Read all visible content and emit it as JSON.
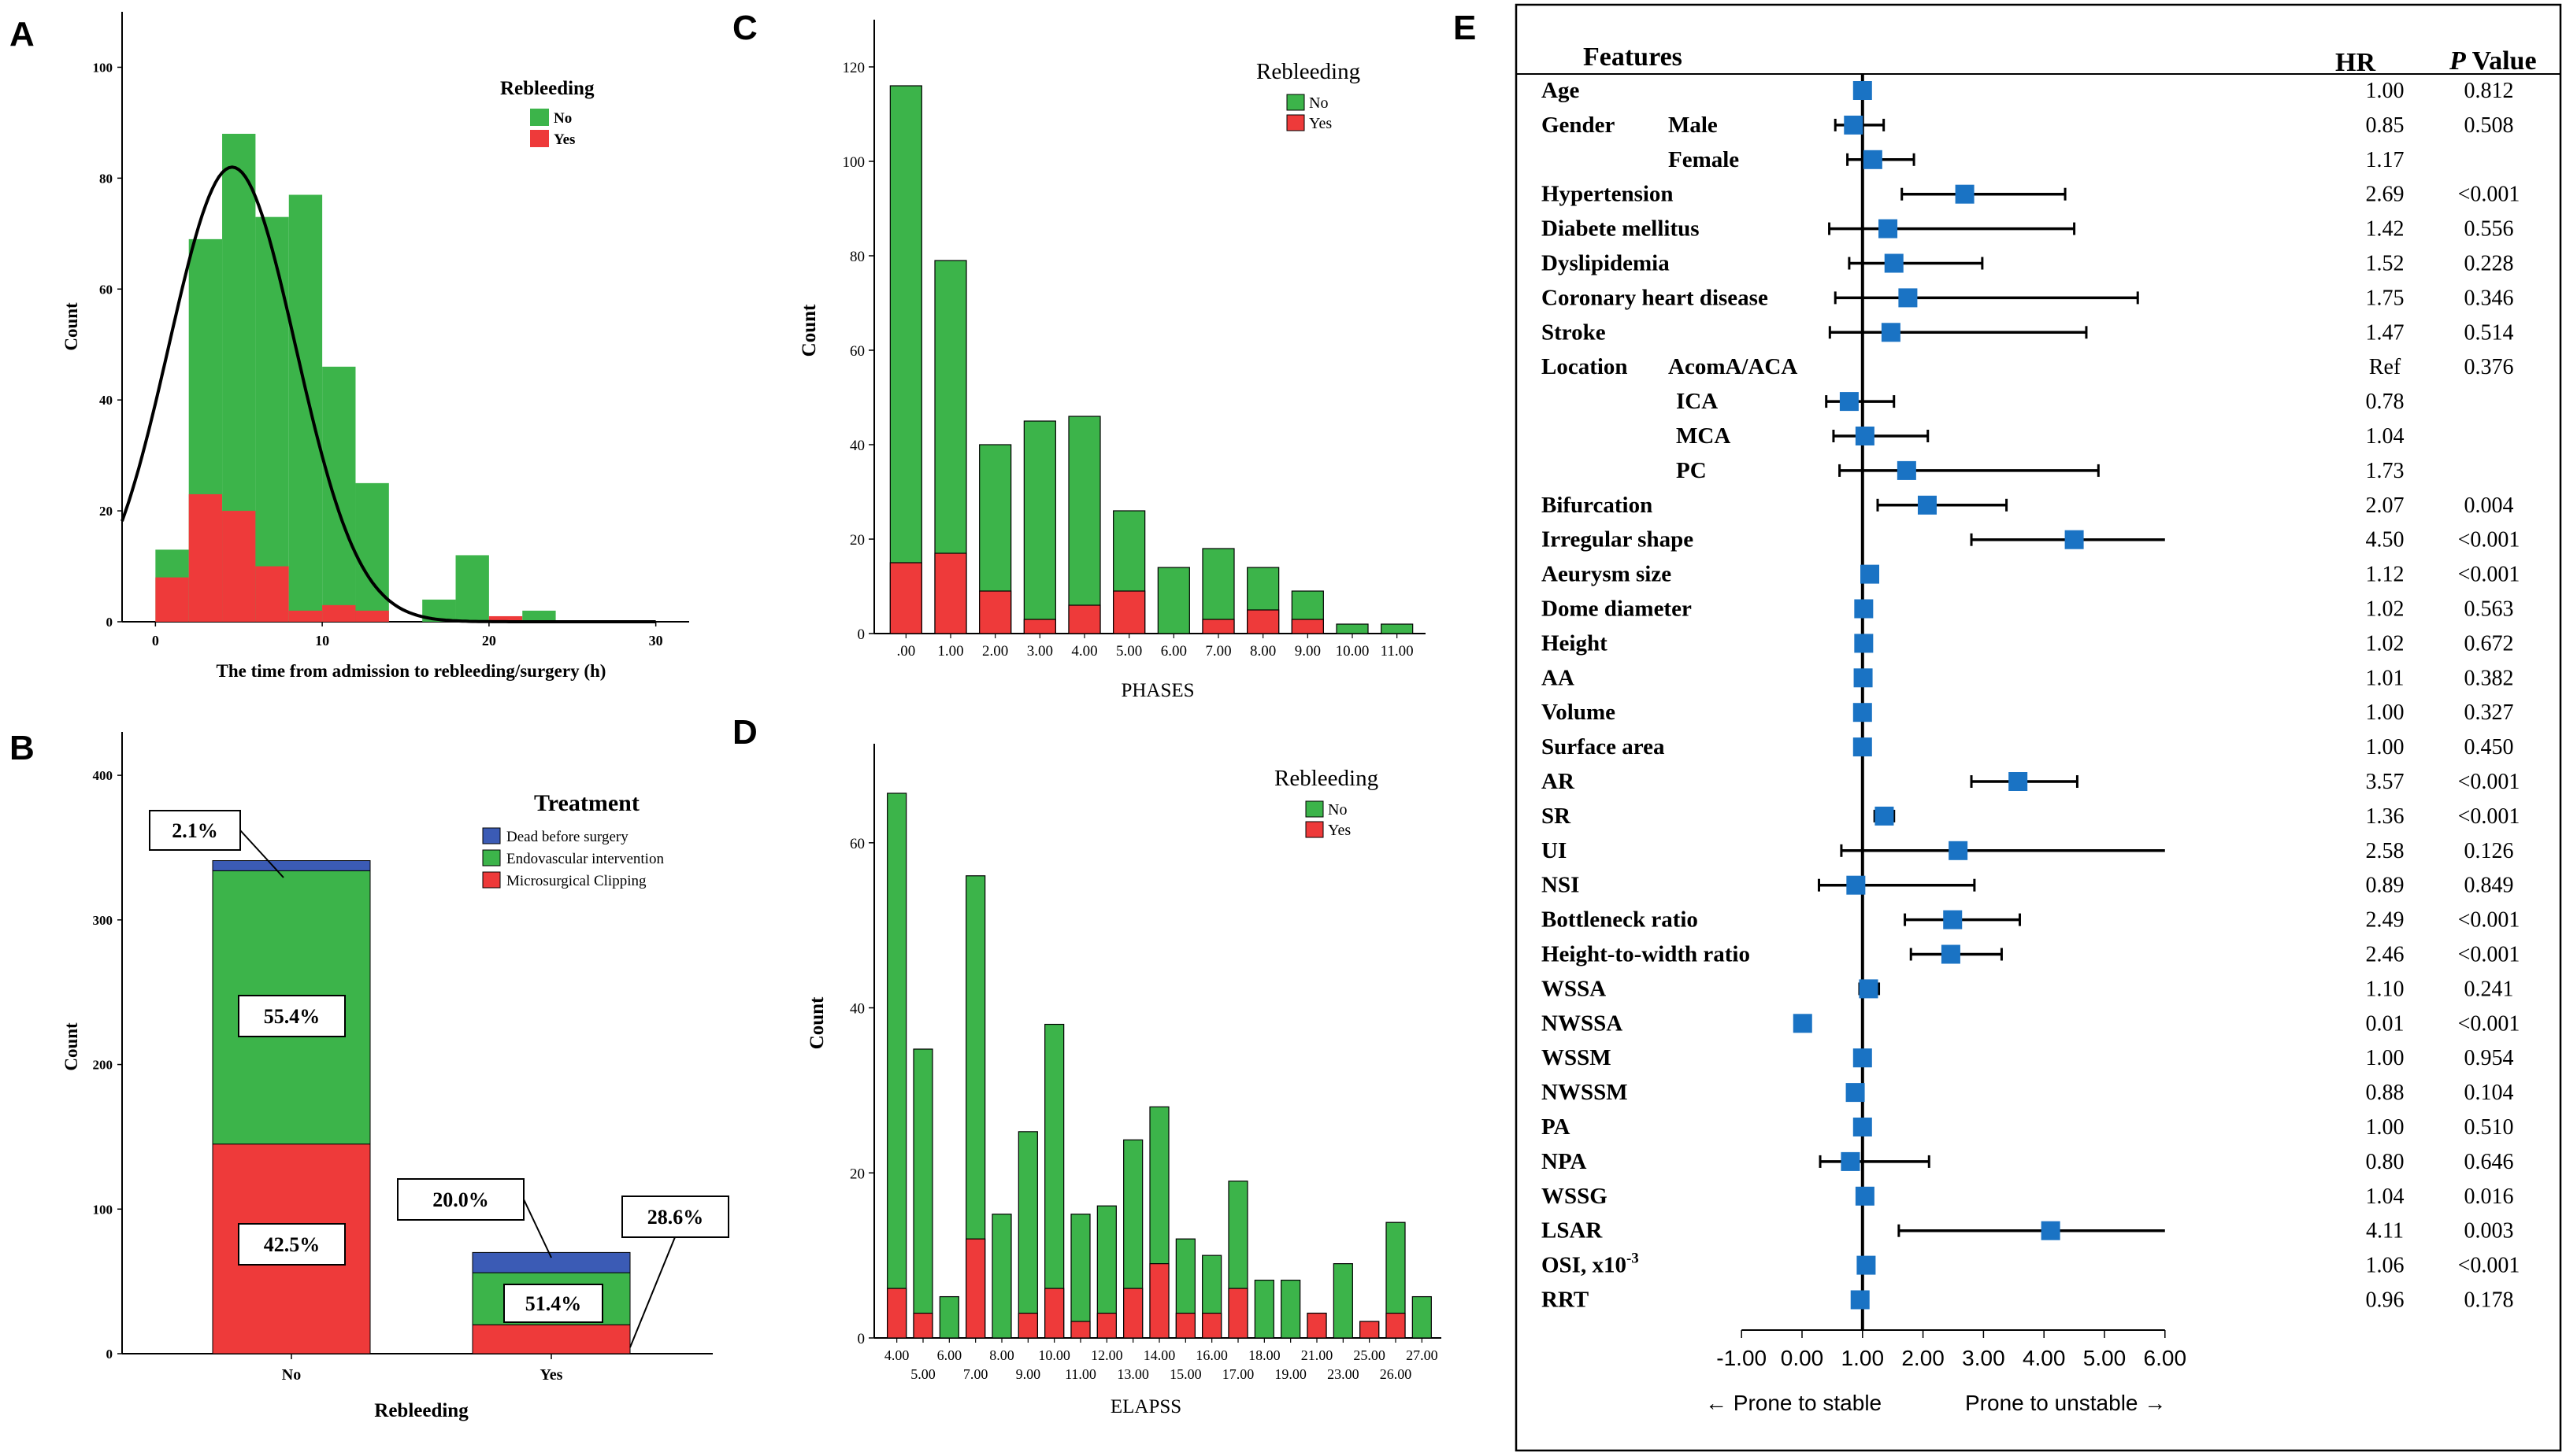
{
  "colors": {
    "green": "#3cb44a",
    "red": "#ee3a3a",
    "blue": "#3b5bb5",
    "marker": "#1a73c4",
    "axis": "#000000"
  },
  "chart_data": [
    {
      "panel_label": "A",
      "type": "bar",
      "title": "",
      "xlabel": "The time from admission to rebleeding/surgery (h)",
      "ylabel": "Count",
      "xlim": [
        -2,
        32
      ],
      "ylim": [
        0,
        110
      ],
      "x_ticks": [
        "0",
        "10",
        "20",
        "30"
      ],
      "y_ticks": [
        "0",
        "20",
        "40",
        "60",
        "80",
        "100"
      ],
      "legend": {
        "title": "Rebleeding",
        "entries": [
          "No",
          "Yes"
        ],
        "position": "top-right"
      },
      "bin_starts": [
        0,
        2,
        4,
        6,
        8,
        10,
        12,
        14,
        16,
        18,
        20,
        22
      ],
      "bin_width": 2,
      "series": [
        {
          "name": "No",
          "values": [
            13,
            69,
            88,
            73,
            77,
            46,
            25,
            0,
            4,
            12,
            0,
            2
          ]
        },
        {
          "name": "Yes",
          "values": [
            8,
            23,
            20,
            10,
            2,
            3,
            2,
            0,
            0,
            0,
            1,
            0
          ]
        }
      ],
      "normal_curve": {
        "mean": 4.6,
        "sd": 3.8,
        "peak": 82
      }
    },
    {
      "panel_label": "B",
      "type": "bar",
      "xlabel": "Rebleeding",
      "ylabel": "Count",
      "ylim": [
        0,
        430
      ],
      "y_ticks": [
        "0",
        "100",
        "200",
        "300",
        "400"
      ],
      "categories": [
        "No",
        "Yes"
      ],
      "legend": {
        "title": "Treatment",
        "entries": [
          "Dead before surgery",
          "Endovascular intervention",
          "Microsurgical Clipping"
        ],
        "position": "top-right"
      },
      "series": [
        {
          "name": "Microsurgical Clipping",
          "values": [
            145,
            20
          ]
        },
        {
          "name": "Endovascular intervention",
          "values": [
            189,
            36
          ]
        },
        {
          "name": "Dead before surgery",
          "values": [
            7,
            14
          ]
        }
      ],
      "annotations": {
        "No": {
          "Dead before surgery": "2.1%",
          "Endovascular intervention": "55.4%",
          "Microsurgical Clipping": "42.5%"
        },
        "Yes": {
          "Dead before surgery": "20.0%",
          "Endovascular intervention": "51.4%",
          "Microsurgical Clipping": "28.6%"
        }
      }
    },
    {
      "panel_label": "C",
      "type": "bar",
      "xlabel": "PHASES",
      "ylabel": "Count",
      "ylim": [
        0,
        130
      ],
      "y_ticks": [
        "0",
        "20",
        "40",
        "60",
        "80",
        "100",
        "120"
      ],
      "categories": [
        ".00",
        "1.00",
        "2.00",
        "3.00",
        "4.00",
        "5.00",
        "6.00",
        "7.00",
        "8.00",
        "9.00",
        "10.00",
        "11.00"
      ],
      "legend": {
        "title": "Rebleeding",
        "entries": [
          "No",
          "Yes"
        ],
        "position": "top-right"
      },
      "series": [
        {
          "name": "No",
          "values": [
            101,
            62,
            31,
            42,
            40,
            17,
            14,
            15,
            9,
            6,
            2,
            2
          ]
        },
        {
          "name": "Yes",
          "values": [
            15,
            17,
            9,
            3,
            6,
            9,
            0,
            3,
            5,
            3,
            0,
            0
          ]
        }
      ]
    },
    {
      "panel_label": "D",
      "type": "bar",
      "xlabel": "ELAPSS",
      "ylabel": "Count",
      "ylim": [
        0,
        72
      ],
      "y_ticks": [
        "0",
        "20",
        "40",
        "60"
      ],
      "categories": [
        "4.00",
        "5.00",
        "6.00",
        "7.00",
        "8.00",
        "9.00",
        "10.00",
        "11.00",
        "12.00",
        "13.00",
        "14.00",
        "15.00",
        "16.00",
        "17.00",
        "18.00",
        "19.00",
        "21.00",
        "23.00",
        "25.00",
        "26.00",
        "27.00"
      ],
      "legend": {
        "title": "Rebleeding",
        "entries": [
          "No",
          "Yes"
        ],
        "position": "top-right"
      },
      "series": [
        {
          "name": "No",
          "values": [
            60,
            32,
            5,
            44,
            15,
            22,
            32,
            13,
            13,
            18,
            19,
            9,
            7,
            13,
            7,
            7,
            0,
            9,
            0,
            11,
            5
          ]
        },
        {
          "name": "Yes",
          "values": [
            6,
            3,
            0,
            12,
            0,
            3,
            6,
            2,
            3,
            6,
            9,
            3,
            3,
            6,
            0,
            0,
            3,
            0,
            2,
            3,
            0
          ]
        }
      ]
    },
    {
      "panel_label": "E",
      "type": "forest",
      "header": {
        "features": "Features",
        "hr": "HR",
        "p_italic": "P",
        "p_rest": " Value"
      },
      "xlim": [
        -1,
        6
      ],
      "x_ticks": [
        "-1.00",
        "0.00",
        "1.00",
        "2.00",
        "3.00",
        "4.00",
        "5.00",
        "6.00"
      ],
      "left_caption": "← Prone to stable",
      "right_caption": "Prone to unstable →",
      "rows": [
        {
          "group": "Age",
          "sub": "",
          "hr": 1.0,
          "lo": 1.0,
          "hi": 1.0,
          "hr_text": "1.00",
          "p": "0.812"
        },
        {
          "group": "Gender",
          "sub": "Male",
          "hr": 0.85,
          "lo": 0.55,
          "hi": 1.35,
          "hr_text": "0.85",
          "p": "0.508"
        },
        {
          "group": "",
          "sub": "Female",
          "hr": 1.17,
          "lo": 0.75,
          "hi": 1.85,
          "hr_text": "1.17",
          "p": ""
        },
        {
          "group": "Hypertension",
          "sub": "",
          "hr": 2.69,
          "lo": 1.65,
          "hi": 4.35,
          "hr_text": "2.69",
          "p": "<0.001"
        },
        {
          "group": "Diabete mellitus",
          "sub": "",
          "hr": 1.42,
          "lo": 0.45,
          "hi": 4.5,
          "hr_text": "1.42",
          "p": "0.556"
        },
        {
          "group": "Dyslipidemia",
          "sub": "",
          "hr": 1.52,
          "lo": 0.78,
          "hi": 2.98,
          "hr_text": "1.52",
          "p": "0.228"
        },
        {
          "group": "Coronary heart disease",
          "sub": "",
          "hr": 1.75,
          "lo": 0.55,
          "hi": 5.55,
          "hr_text": "1.75",
          "p": "0.346"
        },
        {
          "group": "Stroke",
          "sub": "",
          "hr": 1.47,
          "lo": 0.46,
          "hi": 4.7,
          "hr_text": "1.47",
          "p": "0.514"
        },
        {
          "group": "Location",
          "sub": "AcomA/ACA",
          "hr": null,
          "lo": null,
          "hi": null,
          "hr_text": "Ref",
          "p": "0.376"
        },
        {
          "group": "",
          "sub": "ICA",
          "hr": 0.78,
          "lo": 0.4,
          "hi": 1.52,
          "hr_text": "0.78",
          "p": ""
        },
        {
          "group": "",
          "sub": "MCA",
          "hr": 1.04,
          "lo": 0.52,
          "hi": 2.08,
          "hr_text": "1.04",
          "p": ""
        },
        {
          "group": "",
          "sub": "PC",
          "hr": 1.73,
          "lo": 0.62,
          "hi": 4.9,
          "hr_text": "1.73",
          "p": ""
        },
        {
          "group": "Bifurcation",
          "sub": "",
          "hr": 2.07,
          "lo": 1.25,
          "hi": 3.38,
          "hr_text": "2.07",
          "p": "0.004"
        },
        {
          "group": "Irregular shape",
          "sub": "",
          "hr": 4.5,
          "lo": 2.8,
          "hi": 6.0,
          "hr_text": "4.50",
          "p": "<0.001"
        },
        {
          "group": "Aeurysm size",
          "sub": "",
          "hr": 1.12,
          "lo": 1.06,
          "hi": 1.18,
          "hr_text": "1.12",
          "p": "<0.001"
        },
        {
          "group": "Dome diameter",
          "sub": "",
          "hr": 1.02,
          "lo": 0.95,
          "hi": 1.1,
          "hr_text": "1.02",
          "p": "0.563"
        },
        {
          "group": "Height",
          "sub": "",
          "hr": 1.02,
          "lo": 0.94,
          "hi": 1.1,
          "hr_text": "1.02",
          "p": "0.672"
        },
        {
          "group": "AA",
          "sub": "",
          "hr": 1.01,
          "lo": 0.98,
          "hi": 1.04,
          "hr_text": "1.01",
          "p": "0.382"
        },
        {
          "group": "Volume",
          "sub": "",
          "hr": 1.0,
          "lo": 1.0,
          "hi": 1.0,
          "hr_text": "1.00",
          "p": "0.327"
        },
        {
          "group": "Surface area",
          "sub": "",
          "hr": 1.0,
          "lo": 1.0,
          "hi": 1.0,
          "hr_text": "1.00",
          "p": "0.450"
        },
        {
          "group": "AR",
          "sub": "",
          "hr": 3.57,
          "lo": 2.8,
          "hi": 4.55,
          "hr_text": "3.57",
          "p": "<0.001"
        },
        {
          "group": "SR",
          "sub": "",
          "hr": 1.36,
          "lo": 1.2,
          "hi": 1.52,
          "hr_text": "1.36",
          "p": "<0.001"
        },
        {
          "group": "UI",
          "sub": "",
          "hr": 2.58,
          "lo": 0.65,
          "hi": 6.0,
          "hr_text": "2.58",
          "p": "0.126"
        },
        {
          "group": "NSI",
          "sub": "",
          "hr": 0.89,
          "lo": 0.28,
          "hi": 2.85,
          "hr_text": "0.89",
          "p": "0.849"
        },
        {
          "group": "Bottleneck ratio",
          "sub": "",
          "hr": 2.49,
          "lo": 1.7,
          "hi": 3.6,
          "hr_text": "2.49",
          "p": "<0.001"
        },
        {
          "group": "Height-to-width ratio",
          "sub": "",
          "hr": 2.46,
          "lo": 1.8,
          "hi": 3.3,
          "hr_text": "2.46",
          "p": "<0.001"
        },
        {
          "group": "WSSA",
          "sub": "",
          "hr": 1.1,
          "lo": 0.95,
          "hi": 1.27,
          "hr_text": "1.10",
          "p": "0.241"
        },
        {
          "group": "NWSSA",
          "sub": "",
          "hr": 0.01,
          "lo": 0.01,
          "hi": 0.01,
          "hr_text": "0.01",
          "p": "<0.001"
        },
        {
          "group": "WSSM",
          "sub": "",
          "hr": 1.0,
          "lo": 1.0,
          "hi": 1.0,
          "hr_text": "1.00",
          "p": "0.954"
        },
        {
          "group": "NWSSM",
          "sub": "",
          "hr": 0.88,
          "lo": 0.78,
          "hi": 1.0,
          "hr_text": "0.88",
          "p": "0.104"
        },
        {
          "group": "PA",
          "sub": "",
          "hr": 1.0,
          "lo": 1.0,
          "hi": 1.0,
          "hr_text": "1.00",
          "p": "0.510"
        },
        {
          "group": "NPA",
          "sub": "",
          "hr": 0.8,
          "lo": 0.3,
          "hi": 2.1,
          "hr_text": "0.80",
          "p": "0.646"
        },
        {
          "group": "WSSG",
          "sub": "",
          "hr": 1.04,
          "lo": 1.01,
          "hi": 1.07,
          "hr_text": "1.04",
          "p": "0.016"
        },
        {
          "group": "LSAR",
          "sub": "",
          "hr": 4.11,
          "lo": 1.6,
          "hi": 6.0,
          "hr_text": "4.11",
          "p": "0.003"
        },
        {
          "group": "OSI, x10",
          "sub": "",
          "sup": "-3",
          "hr": 1.06,
          "lo": 1.0,
          "hi": 1.12,
          "hr_text": "1.06",
          "p": "<0.001"
        },
        {
          "group": "RRT",
          "sub": "",
          "hr": 0.96,
          "lo": 0.92,
          "hi": 1.0,
          "hr_text": "0.96",
          "p": "0.178"
        }
      ]
    }
  ]
}
